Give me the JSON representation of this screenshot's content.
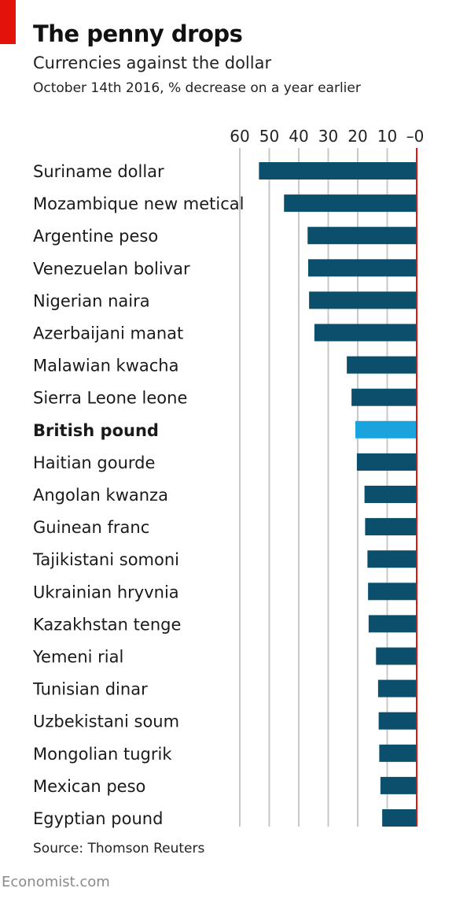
{
  "header": {
    "title": "The penny drops",
    "subtitle": "Currencies against the dollar",
    "subtitle2": "October 14th 2016, % decrease on a year earlier"
  },
  "footer": {
    "source": "Source: Thomson Reuters",
    "brand": "Economist.com"
  },
  "colors": {
    "bar": "#0b4f6c",
    "highlight": "#1aa3dd",
    "zero_line": "#e3120b",
    "grid": "#c8c8c8",
    "accent_tag": "#e3120b"
  },
  "chart_data": {
    "type": "bar",
    "orientation": "horizontal",
    "axis_direction": "reversed",
    "xlim": [
      0,
      60
    ],
    "xticks": [
      60,
      50,
      40,
      30,
      20,
      10,
      0
    ],
    "xtick_labels": [
      "60",
      "50",
      "40",
      "30",
      "20",
      "10",
      "–0"
    ],
    "title": "The penny drops",
    "subtitle": "Currencies against the dollar",
    "note": "October 14th 2016, % decrease on a year earlier",
    "grid": true,
    "highlight": "British pound",
    "categories": [
      "Suriname dollar",
      "Mozambique new metical",
      "Argentine peso",
      "Venezuelan bolivar",
      "Nigerian naira",
      "Azerbaijani manat",
      "Malawian kwacha",
      "Sierra Leone leone",
      "British pound",
      "Haitian gourde",
      "Angolan kwanza",
      "Guinean franc",
      "Tajikistani somoni",
      "Ukrainian hryvnia",
      "Kazakhstan tenge",
      "Yemeni rial",
      "Tunisian dinar",
      "Uzbekistani soum",
      "Mongolian tugrik",
      "Mexican peso",
      "Egyptian pound"
    ],
    "values": [
      53.5,
      45,
      37,
      36.8,
      36.5,
      34.7,
      23.7,
      22.1,
      20.8,
      20.3,
      17.7,
      17.5,
      16.7,
      16.5,
      16.3,
      13.8,
      13.1,
      12.9,
      12.7,
      12.3,
      11.7
    ]
  }
}
